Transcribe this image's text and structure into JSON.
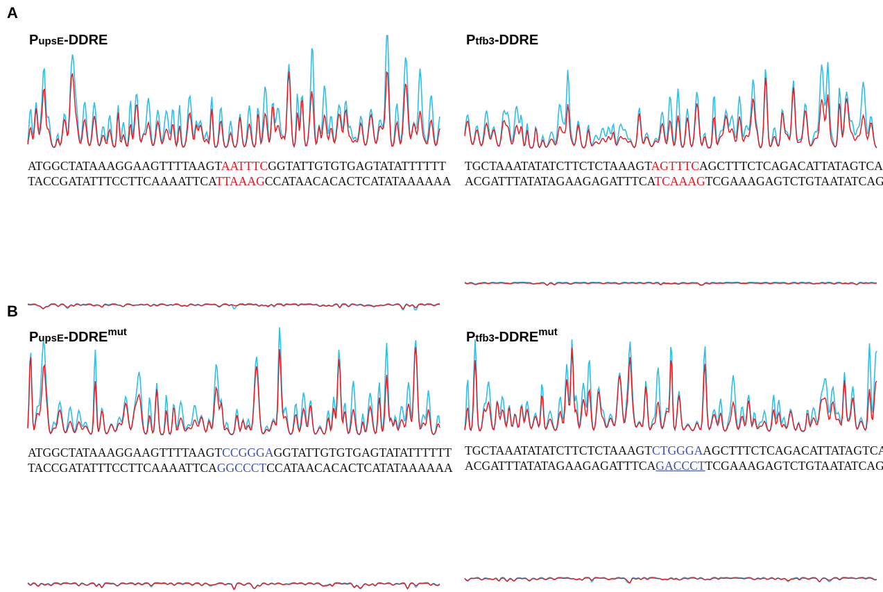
{
  "figure": {
    "panel_a_letter": "A",
    "panel_b_letter": "B",
    "colors": {
      "trace_cyan": "#2fbfe6",
      "trace_red": "#e8141b",
      "site_red": "#e8141b",
      "site_blue": "#3b4fb0"
    },
    "panels": [
      {
        "id": "a-left",
        "title_main": "P",
        "title_sub": "upsE",
        "title_rest": "-DDRE",
        "title_sup": "",
        "top_seq": {
          "pre": "ATGGCTATAAAGGAAGTTTTAAGT",
          "site": "AATTTC",
          "post": "GGTATTGTGTGAGTATATTTTTT",
          "site_color": "red"
        },
        "bottom_seq": {
          "pre": "TACCGATATTTCCTTCAAAATTCA",
          "site": "TTAAAG",
          "post": "CCATAACACACTCATATAAAAAA",
          "site_color": "red"
        }
      },
      {
        "id": "a-right",
        "title_main": "P",
        "title_sub": "tfb3",
        "title_rest": "-DDRE",
        "title_sup": "",
        "top_seq": {
          "pre": "TGCTAAATATATCTTCTCTAAAGT",
          "site": "AGTTTC",
          "post": "AGCTTTCTCAGACATTATAGTCA",
          "site_color": "red"
        },
        "bottom_seq": {
          "pre": "ACGATTTATATAGAAGAGATTTCA",
          "site": "TCAAAG",
          "post": "TCGAAAGAGTCTGTAATATCAGT",
          "site_color": "red"
        }
      },
      {
        "id": "b-left",
        "title_main": "P",
        "title_sub": "upsE",
        "title_rest": "-DDRE",
        "title_sup": "mut",
        "top_seq": {
          "pre": "ATGGCTATAAAGGAAGTTTTAAGT",
          "site": "CCGGGA",
          "post": "GGTATTGTGTGAGTATATTTTTT",
          "site_color": "blue"
        },
        "bottom_seq": {
          "pre": "TACCGATATTTCCTTCAAAATTCA",
          "site": "GGCCCT",
          "post": "CCATAACACACTCATATAAAAAA",
          "site_color": "blue"
        }
      },
      {
        "id": "b-right",
        "title_main": "P",
        "title_sub": "tfb3",
        "title_rest": "-DDRE",
        "title_sup": "mut",
        "top_seq": {
          "pre": "TGCTAAATATATCTTCTCTAAAGT",
          "site": "CTGGGA",
          "post": "AGCTTTCTCAGACATTATAGTCA",
          "site_color": "blue"
        },
        "bottom_seq": {
          "pre": "ACGATTTATATAGAAGAGATTTCA",
          "site": "GACCCT",
          "post": "TCGAAAGAGTCTGTAATATCAGT",
          "site_color": "blue"
        }
      }
    ]
  }
}
